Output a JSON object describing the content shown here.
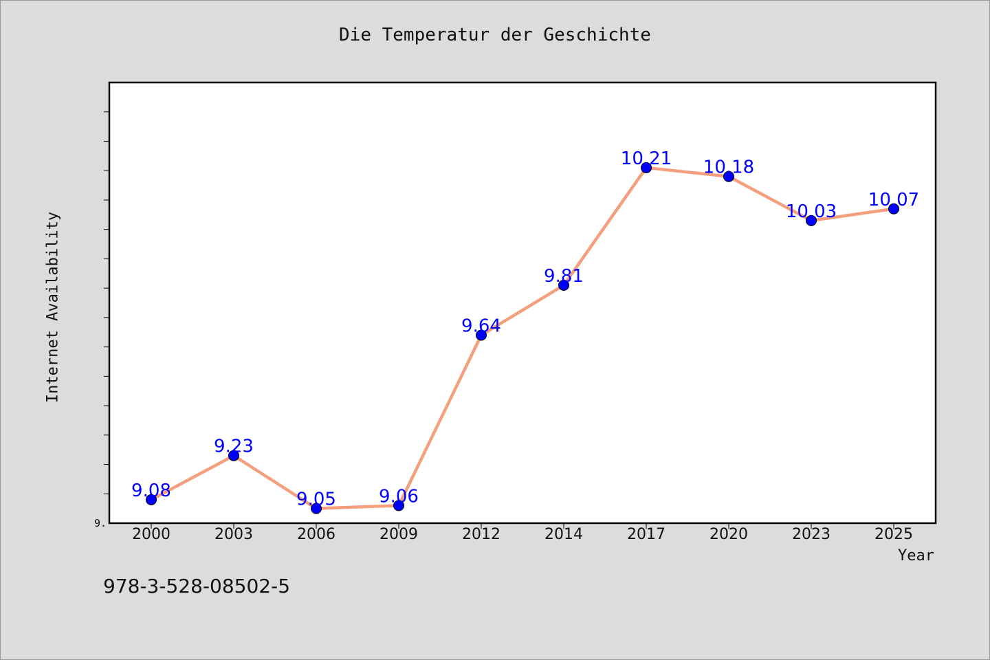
{
  "chart_data": {
    "type": "line",
    "title": "Die Temperatur der Geschichte",
    "xlabel": "Year",
    "ylabel": "Internet Availability",
    "categories": [
      "2000",
      "2003",
      "2006",
      "2009",
      "2012",
      "2014",
      "2017",
      "2020",
      "2023",
      "2025"
    ],
    "series": [
      {
        "values": [
          9.08,
          9.23,
          9.05,
          9.06,
          9.64,
          9.81,
          10.21,
          10.18,
          10.03,
          10.07
        ]
      }
    ],
    "data_labels": [
      "9.08",
      "9.23",
      "9.05",
      "9.06",
      "9.64",
      "9.81",
      "10.21",
      "10.18",
      "10.03",
      "10.07"
    ],
    "y_tick_labels": [
      "9."
    ],
    "ylim": [
      9.0,
      10.5
    ],
    "grid": false,
    "line_color": "#f4a07e",
    "marker_color": "#0000ff",
    "label_color": "#0000ff"
  },
  "footer_text": "978-3-528-08502-5"
}
